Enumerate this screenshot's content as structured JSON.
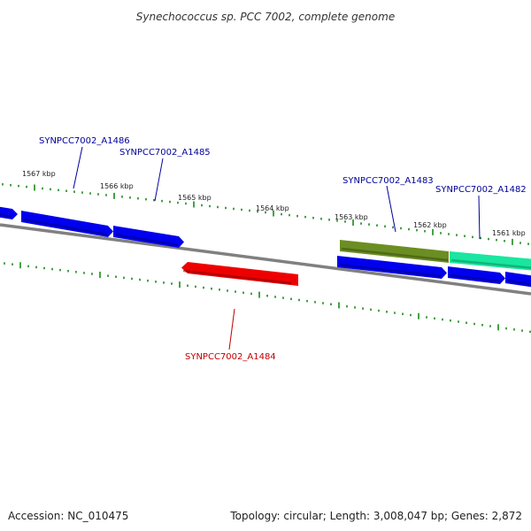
{
  "title": "Synechococcus sp. PCC 7002, complete genome",
  "accession": "Accession: NC_010475",
  "summary": "Topology: circular; Length: 3,008,047 bp; Genes: 2,872",
  "colors": {
    "forward_gene": "#0000ee",
    "reverse_gene": "#ee0000",
    "gene_olive": "#6b8e23",
    "gene_teal": "#19e6a0",
    "tick": "#1a8a1a",
    "backbone": "#808080",
    "label_forward": "#00009c",
    "label_reverse": "#c00000"
  },
  "scale_labels": [
    "1567 kbp",
    "1566 kbp",
    "1565 kbp",
    "1564 kbp",
    "1563 kbp",
    "1562 kbp",
    "1561 kbp"
  ],
  "genes": [
    {
      "label": "SYNPCC7002_A1486",
      "strand": "forward",
      "color_key": "forward_gene"
    },
    {
      "label": "SYNPCC7002_A1485",
      "strand": "forward",
      "color_key": "forward_gene"
    },
    {
      "label": "SYNPCC7002_A1484",
      "strand": "reverse",
      "color_key": "reverse_gene"
    },
    {
      "label": "SYNPCC7002_A1483",
      "strand": "forward",
      "color_key": "gene_olive"
    },
    {
      "label": "SYNPCC7002_A1482",
      "strand": "forward",
      "color_key": "gene_teal"
    }
  ]
}
